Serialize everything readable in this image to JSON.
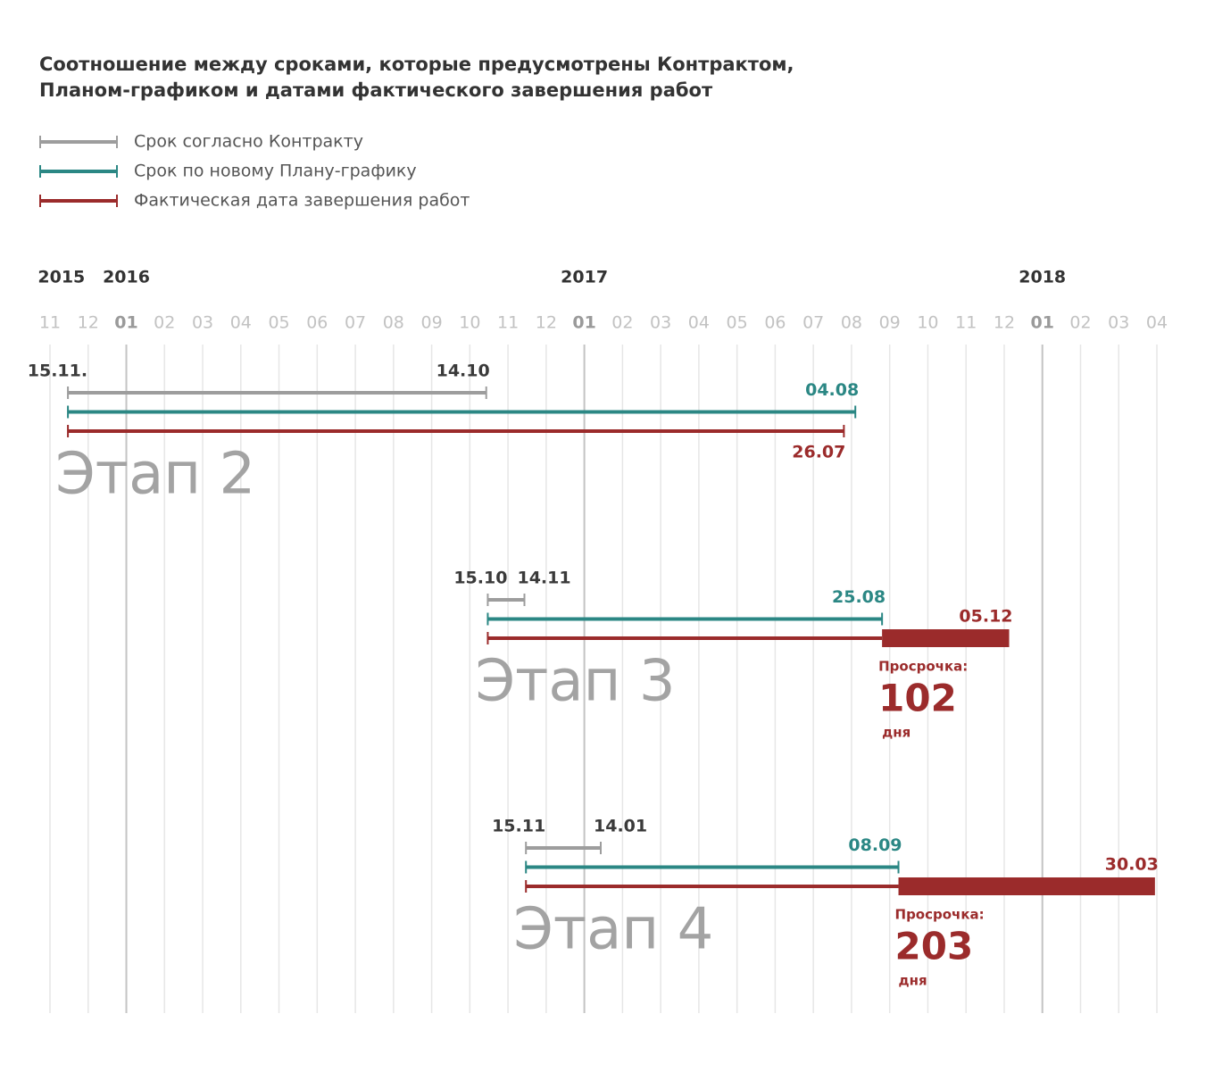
{
  "chart_data": {
    "type": "gantt",
    "title": [
      "Соотношение между сроками, которые предусмотрены Контрактом,",
      "Планом-графиком и датами фактического завершения работ"
    ],
    "series": [
      {
        "name": "Срок согласно Контракту",
        "color": "#9d9d9d"
      },
      {
        "name": "Срок по новому Плану-графику",
        "color": "#2b8784"
      },
      {
        "name": "Фактическая дата завершения работ",
        "color": "#9b2b2b"
      }
    ],
    "xlim": [
      0,
      29
    ],
    "years": [
      {
        "value": 0.3,
        "label": "2015"
      },
      {
        "value": 2,
        "label": "2016"
      },
      {
        "value": 14,
        "label": "2017"
      },
      {
        "value": 26,
        "label": "2018"
      }
    ],
    "xticks": [
      {
        "value": 0,
        "label": "11"
      },
      {
        "value": 1,
        "label": "12"
      },
      {
        "value": 2,
        "label": "01"
      },
      {
        "value": 3,
        "label": "02"
      },
      {
        "value": 4,
        "label": "03"
      },
      {
        "value": 5,
        "label": "04"
      },
      {
        "value": 6,
        "label": "05"
      },
      {
        "value": 7,
        "label": "06"
      },
      {
        "value": 8,
        "label": "07"
      },
      {
        "value": 9,
        "label": "08"
      },
      {
        "value": 10,
        "label": "09"
      },
      {
        "value": 11,
        "label": "10"
      },
      {
        "value": 12,
        "label": "11"
      },
      {
        "value": 13,
        "label": "12"
      },
      {
        "value": 14,
        "label": "01"
      },
      {
        "value": 15,
        "label": "02"
      },
      {
        "value": 16,
        "label": "03"
      },
      {
        "value": 17,
        "label": "04"
      },
      {
        "value": 18,
        "label": "05"
      },
      {
        "value": 19,
        "label": "06"
      },
      {
        "value": 20,
        "label": "07"
      },
      {
        "value": 21,
        "label": "08"
      },
      {
        "value": 22,
        "label": "09"
      },
      {
        "value": 23,
        "label": "10"
      },
      {
        "value": 24,
        "label": "11"
      },
      {
        "value": 25,
        "label": "12"
      },
      {
        "value": 26,
        "label": "01"
      },
      {
        "value": 27,
        "label": "02"
      },
      {
        "value": 28,
        "label": "03"
      },
      {
        "value": 29,
        "label": "04"
      }
    ],
    "stages": [
      {
        "name": "Этап 2",
        "bars": [
          {
            "values": [
              0.47,
              11.43
            ],
            "value_labels": [
              "15.11.",
              "14.10"
            ]
          },
          {
            "values": [
              0.47,
              21.1
            ],
            "value_labels": [
              null,
              "04.08"
            ]
          },
          {
            "values": [
              0.47,
              20.8
            ],
            "value_labels": [
              null,
              "26.07"
            ]
          }
        ]
      },
      {
        "name": "Этап 3",
        "bars": [
          {
            "values": [
              11.47,
              12.43
            ],
            "value_labels": [
              "15.10",
              "14.11"
            ]
          },
          {
            "values": [
              11.47,
              21.8
            ],
            "value_labels": [
              null,
              "25.08"
            ]
          },
          {
            "values": [
              11.47,
              25.13
            ],
            "value_labels": [
              null,
              "05.12"
            ]
          }
        ],
        "delay": {
          "label": "Просрочка:",
          "value": 102,
          "unit": "дня"
        }
      },
      {
        "name": "Этап 4",
        "bars": [
          {
            "values": [
              12.47,
              14.43
            ],
            "value_labels": [
              "15.11",
              "14.01"
            ]
          },
          {
            "values": [
              12.47,
              22.23
            ],
            "value_labels": [
              null,
              "08.09"
            ]
          },
          {
            "values": [
              12.47,
              28.95
            ],
            "value_labels": [
              null,
              "30.03"
            ]
          }
        ],
        "delay": {
          "label": "Просрочка:",
          "value": 203,
          "unit": "дня"
        }
      }
    ]
  }
}
